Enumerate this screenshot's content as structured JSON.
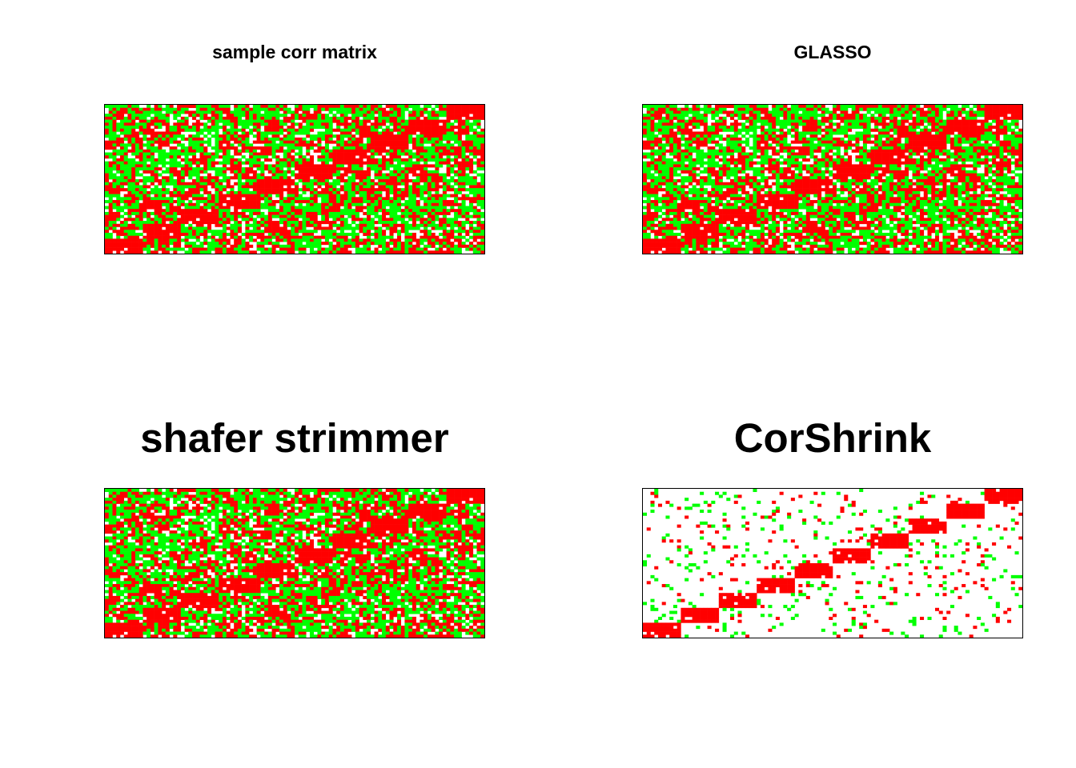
{
  "chart_data": [
    {
      "type": "heatmap",
      "title": "sample corr matrix",
      "n_blocks": 10,
      "palette": {
        "negative": "#00ff00",
        "zero": "#ffffff",
        "positive": "#ff0000"
      },
      "style": "dense",
      "axes": false
    },
    {
      "type": "heatmap",
      "title": "GLASSO",
      "n_blocks": 10,
      "palette": {
        "negative": "#00ff00",
        "zero": "#ffffff",
        "positive": "#ff0000"
      },
      "style": "dense",
      "axes": false
    },
    {
      "type": "heatmap",
      "title": "shafer strimmer",
      "n_blocks": 10,
      "palette": {
        "negative": "#00ff00",
        "zero": "#ffffff",
        "positive": "#ff0000"
      },
      "style": "dense",
      "axes": false
    },
    {
      "type": "heatmap",
      "title": "CorShrink",
      "n_blocks": 10,
      "palette": {
        "negative": "#00ff00",
        "zero": "#ffffff",
        "positive": "#ff0000"
      },
      "style": "sparse",
      "axes": false
    }
  ]
}
